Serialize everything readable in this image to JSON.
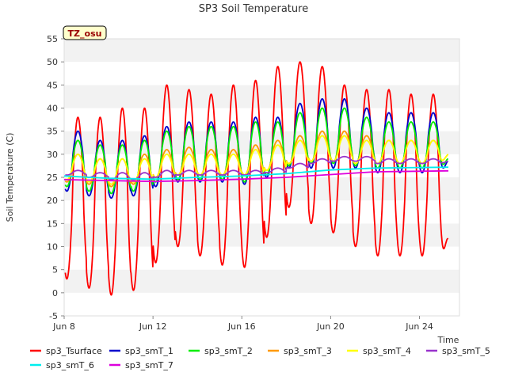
{
  "chart_data": {
    "type": "line",
    "title": "SP3 Soil Temperature",
    "xlabel": "Time",
    "ylabel": "Soil Temperature (C)",
    "badge": "TZ_osu",
    "xlim": [
      8,
      25.8
    ],
    "ylim": [
      -5,
      55
    ],
    "y_ticks": [
      -5,
      0,
      5,
      10,
      15,
      20,
      25,
      30,
      35,
      40,
      45,
      50,
      55
    ],
    "x_ticks": [
      {
        "value": 8,
        "label": "Jun 8"
      },
      {
        "value": 12,
        "label": "Jun 12"
      },
      {
        "value": 16,
        "label": "Jun 16"
      },
      {
        "value": 20,
        "label": "Jun 20"
      },
      {
        "value": 24,
        "label": "Jun 24"
      }
    ],
    "bands": "alternating",
    "series": [
      {
        "name": "sp3_Tsurface",
        "color": "#ff0000",
        "daily_max": [
          38,
          38,
          40,
          40,
          45,
          44,
          43,
          45,
          46,
          49,
          50,
          49,
          45,
          44,
          44,
          43
        ],
        "daily_min": [
          3,
          1,
          -0.5,
          0.5,
          6.5,
          10,
          8,
          6,
          5.5,
          12,
          18.5,
          15,
          13,
          10,
          8,
          8
        ],
        "final_value": 11.5
      },
      {
        "name": "sp3_smT_1",
        "color": "#0000cc",
        "daily_max": [
          35,
          33,
          33,
          34,
          36,
          37,
          37,
          37,
          38,
          38,
          41,
          42,
          42,
          40,
          39,
          39
        ],
        "daily_min": [
          22,
          21,
          20.5,
          21,
          23,
          24,
          24,
          24,
          23.5,
          25,
          27,
          27,
          27,
          27,
          26,
          26
        ],
        "final_value": 28.5
      },
      {
        "name": "sp3_smT_2",
        "color": "#00ee00",
        "daily_max": [
          33,
          32,
          32,
          33,
          35,
          36,
          36,
          36,
          37,
          37,
          39,
          40,
          40,
          38,
          37,
          37
        ],
        "daily_min": [
          23,
          22,
          21.5,
          22,
          24,
          24.5,
          24.5,
          24.5,
          24,
          25.5,
          27.5,
          28,
          28,
          27.5,
          27,
          27
        ],
        "final_value": 29
      },
      {
        "name": "sp3_smT_3",
        "color": "#ff9900",
        "daily_max": [
          30,
          29,
          29,
          30,
          31,
          31.5,
          31,
          31,
          32,
          33,
          34,
          35,
          35,
          34,
          33,
          33
        ],
        "daily_min": [
          24,
          23.5,
          23,
          23.5,
          25,
          25.5,
          25.5,
          25.5,
          25.5,
          26.5,
          28,
          28.5,
          28.5,
          28,
          28,
          28
        ],
        "final_value": 30
      },
      {
        "name": "sp3_smT_4",
        "color": "#ffff00",
        "daily_max": [
          30,
          29,
          29,
          29,
          30,
          30,
          30,
          30,
          31,
          32,
          33,
          34,
          34,
          33,
          33,
          33
        ],
        "daily_min": [
          24.5,
          24,
          23.5,
          24,
          25,
          25.5,
          25.5,
          25.5,
          25.5,
          26.5,
          28,
          28.5,
          28.5,
          28,
          28,
          28
        ],
        "final_value": 30
      },
      {
        "name": "sp3_smT_5",
        "color": "#9933cc",
        "daily_max": [
          26.5,
          26,
          26,
          26,
          26.5,
          26.5,
          26.5,
          26.5,
          26.5,
          27,
          28,
          29,
          29.5,
          29.5,
          29,
          29
        ],
        "daily_min": [
          25.5,
          25,
          24.5,
          24.5,
          25,
          25.5,
          25.5,
          25.5,
          25.5,
          26,
          27,
          28,
          28.5,
          28.5,
          28,
          28
        ],
        "final_value": 28.5
      },
      {
        "name": "sp3_smT_6",
        "color": "#00eeee",
        "trend": [
          [
            8,
            25.3
          ],
          [
            10,
            24.8
          ],
          [
            12,
            24.6
          ],
          [
            14,
            25
          ],
          [
            16,
            25.3
          ],
          [
            18,
            25.8
          ],
          [
            20,
            26.6
          ],
          [
            22,
            27
          ],
          [
            25.3,
            27.2
          ]
        ],
        "final_value": 27.2
      },
      {
        "name": "sp3_smT_7",
        "color": "#dd00dd",
        "trend": [
          [
            8,
            24.5
          ],
          [
            10,
            24.3
          ],
          [
            12,
            24.1
          ],
          [
            14,
            24.3
          ],
          [
            16,
            24.6
          ],
          [
            18,
            25
          ],
          [
            20,
            25.6
          ],
          [
            22,
            26.2
          ],
          [
            25.3,
            26.4
          ]
        ],
        "final_value": 26.4
      }
    ]
  }
}
